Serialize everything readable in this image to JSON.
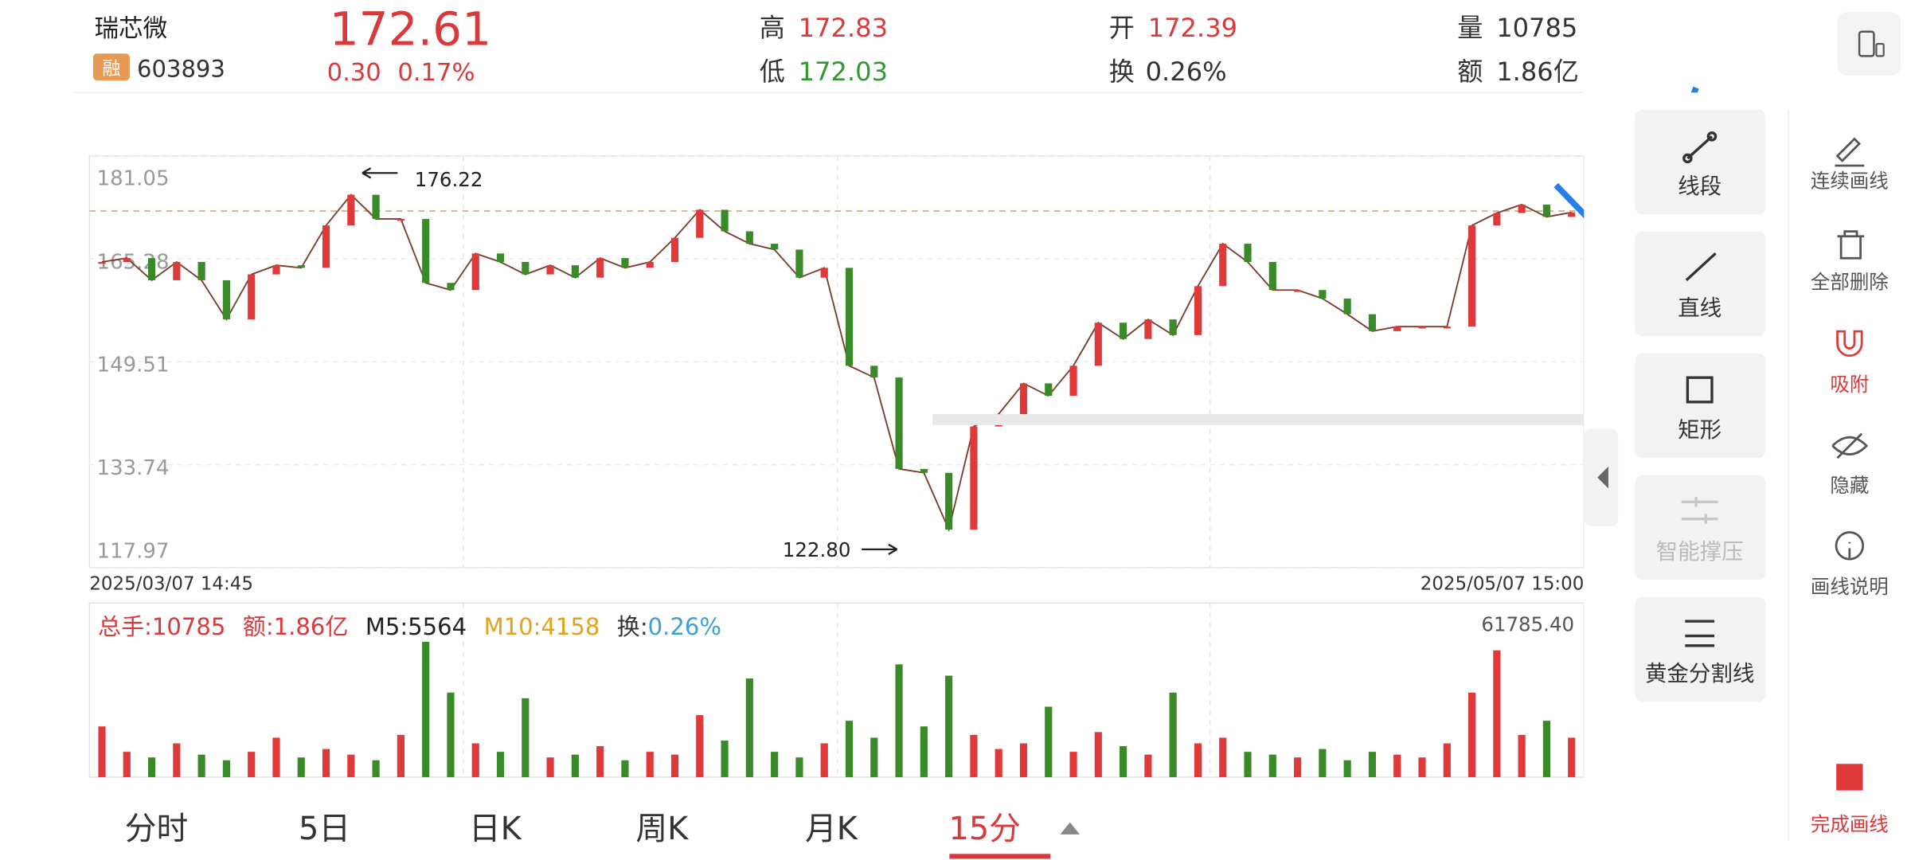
{
  "header": {
    "name": "瑞芯微",
    "badge": "融",
    "code": "603893",
    "price": 172.61,
    "change": "0.30",
    "change_pct": "0.17%",
    "high_label": "高",
    "high": "172.83",
    "low_label": "低",
    "low": "172.03",
    "open_label": "开",
    "open": "172.39",
    "turnover_label": "换",
    "turnover": "0.26%",
    "volume_label": "量",
    "volume": "10785",
    "amount_label": "额",
    "amount": "1.86亿"
  },
  "price_chart": {
    "ylim": [
      117.97,
      181.05
    ],
    "yticks": [
      181.05,
      165.28,
      149.51,
      133.74,
      117.97
    ],
    "high_marker": "176.22",
    "low_marker": "122.80",
    "start_time": "2025/03/07 14:45",
    "end_time": "2025/05/07 15:00",
    "closes": [
      164.8,
      165.4,
      162.0,
      164.8,
      162.0,
      156.0,
      162.9,
      164.3,
      163.9,
      170.4,
      175.1,
      171.4,
      171.4,
      161.6,
      160.5,
      166.1,
      164.8,
      162.9,
      164.3,
      162.4,
      165.4,
      163.9,
      164.8,
      168.5,
      172.8,
      169.5,
      167.6,
      166.7,
      162.4,
      163.9,
      148.9,
      147.1,
      133.1,
      132.5,
      123.8,
      139.6,
      141.5,
      146.2,
      144.3,
      148.9,
      155.5,
      153.0,
      156.0,
      153.6,
      161.1,
      167.6,
      164.8,
      160.5,
      160.5,
      159.2,
      156.8,
      154.2,
      154.9,
      154.9,
      154.9,
      170.4,
      172.3,
      173.6,
      171.7,
      172.4
    ]
  },
  "volume_chart": {
    "legend": [
      "总手:10785",
      "额:1.86亿",
      "M5:5564",
      "M10:4158"
    ],
    "turnover_key": "换:",
    "turnover_value": "0.26%",
    "ylim": [
      0,
      61785.4
    ],
    "top_tick": {
      "value": 61785.4,
      "label": "61785.40"
    },
    "volumes": [
      18000,
      9000,
      7000,
      12000,
      8000,
      6000,
      9000,
      14000,
      7000,
      10000,
      8000,
      6000,
      15000,
      48000,
      30000,
      12000,
      9000,
      28000,
      7000,
      8000,
      11000,
      6000,
      9000,
      8000,
      22000,
      13000,
      35000,
      9000,
      7000,
      12000,
      20000,
      14000,
      40000,
      18000,
      36000,
      15000,
      10000,
      12000,
      25000,
      9000,
      16000,
      11000,
      8000,
      30000,
      12000,
      14000,
      9000,
      8000,
      7000,
      10000,
      6000,
      9000,
      8000,
      7000,
      12000,
      30000,
      45000,
      15000,
      20000,
      14000
    ]
  },
  "tabs": [
    "分时",
    "5日",
    "日K",
    "周K",
    "月K",
    "15分"
  ],
  "tools": [
    "线段",
    "直线",
    "矩形",
    "智能撑压",
    "黄金分割线"
  ],
  "side_actions": [
    "连续画线",
    "全部删除",
    "吸附",
    "隐藏",
    "画线说明",
    "完成画线"
  ]
}
